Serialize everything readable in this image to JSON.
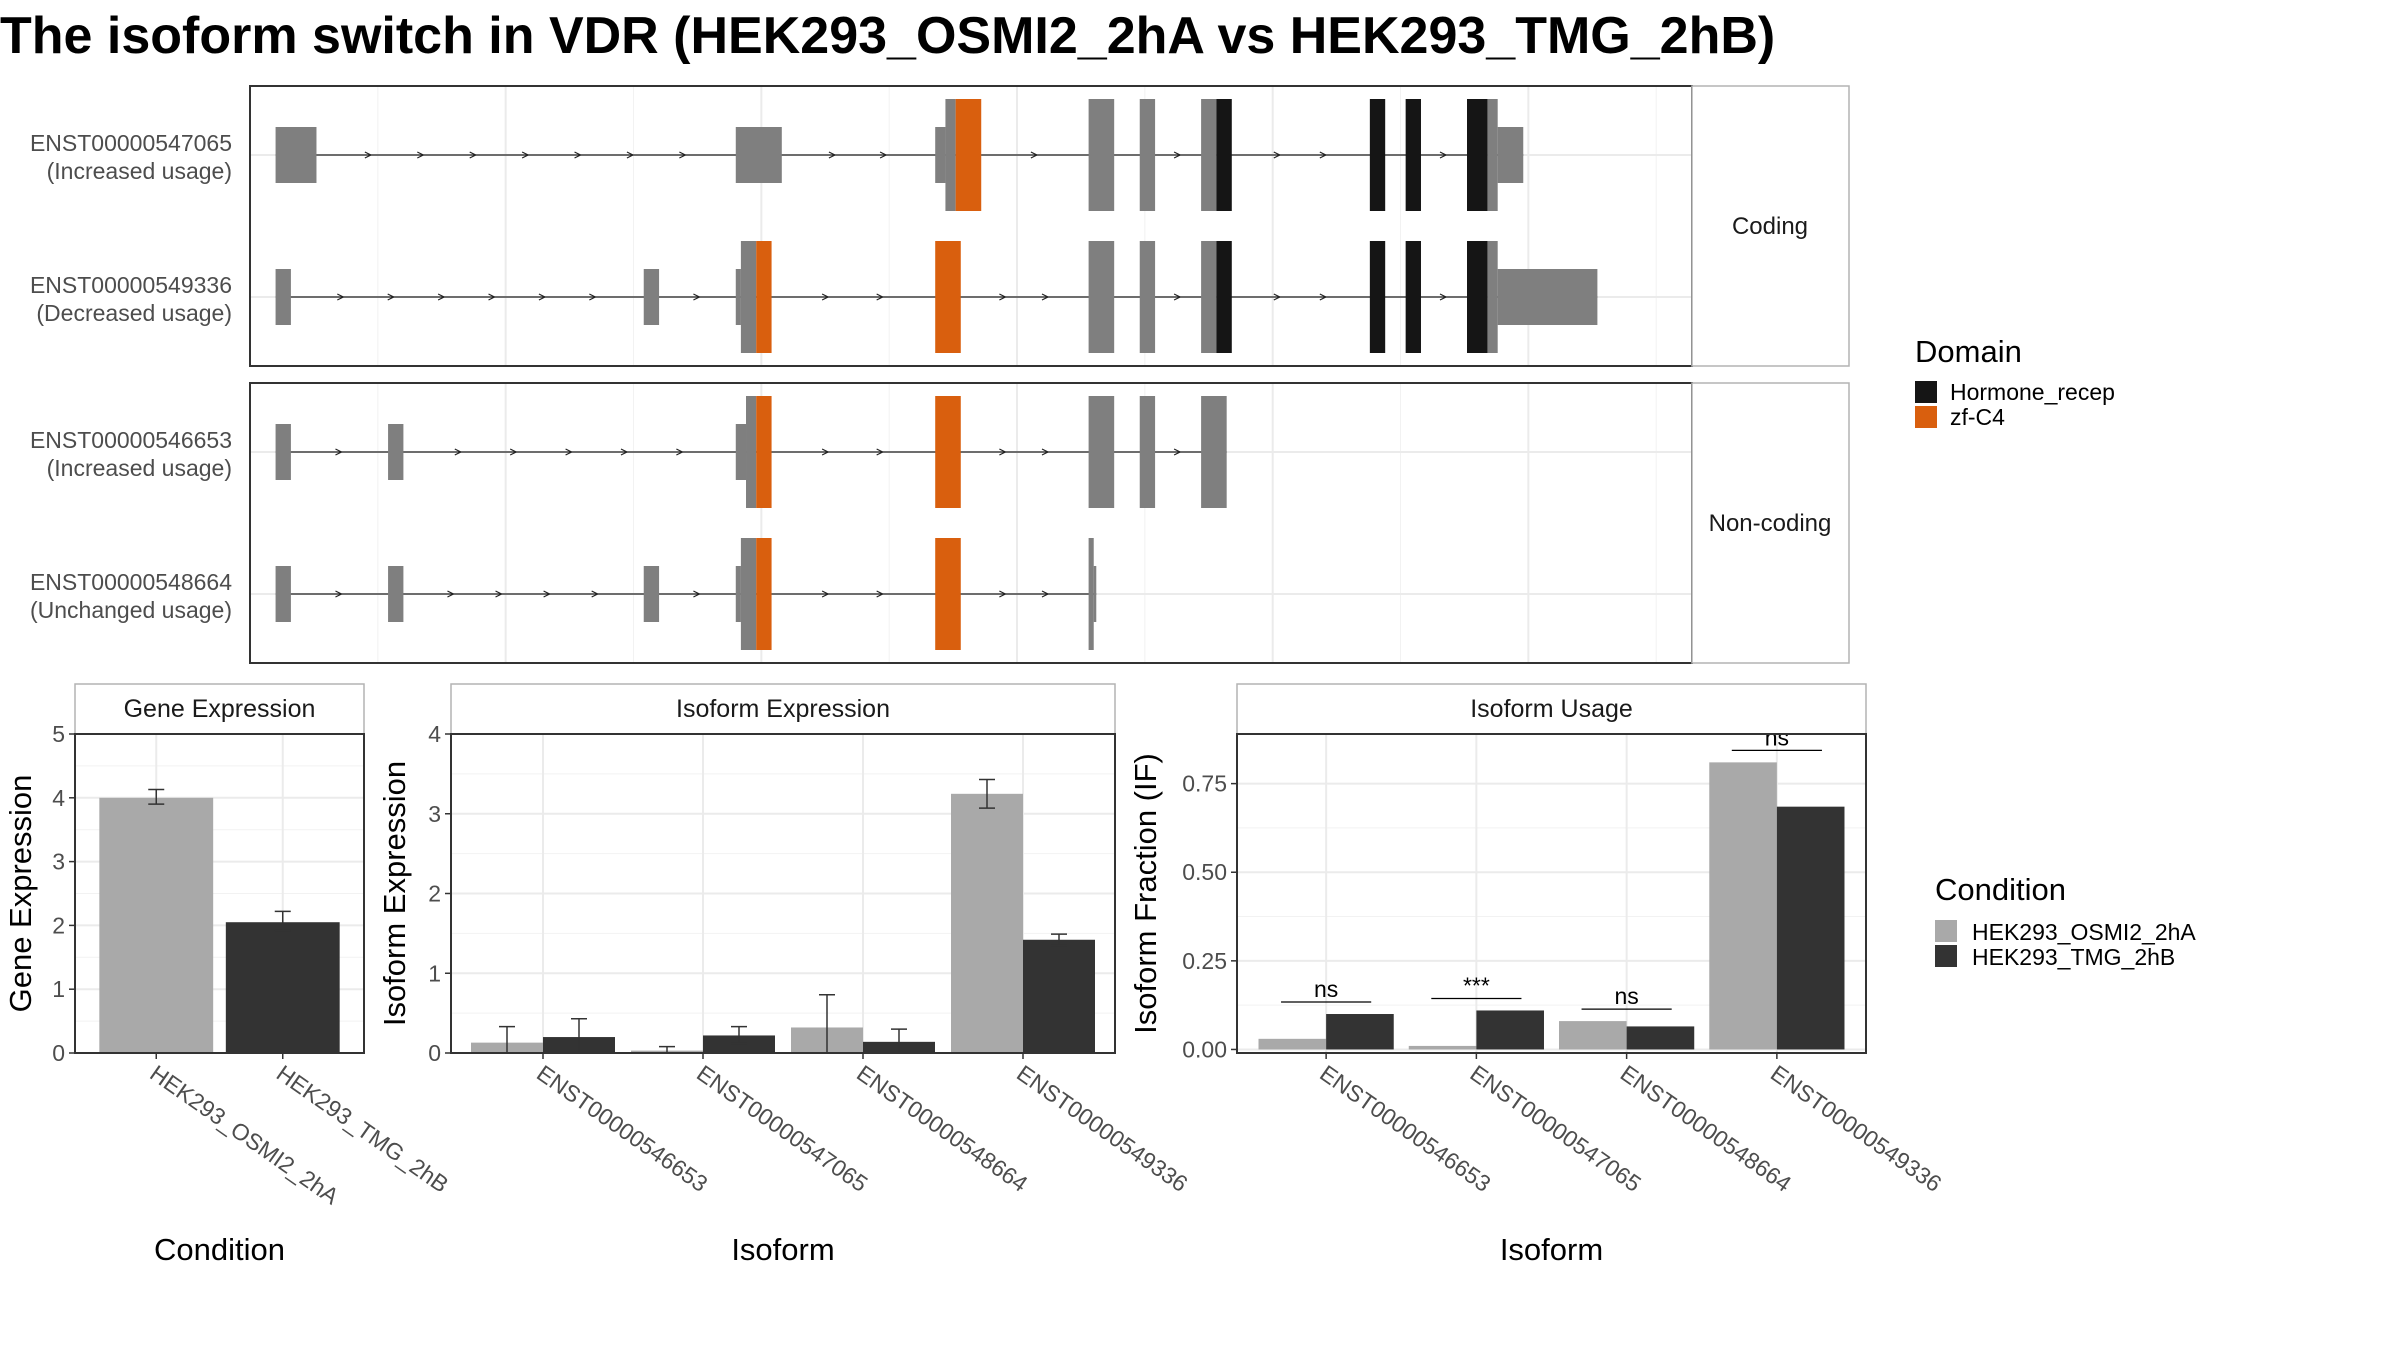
{
  "title": "The isoform switch in VDR (HEK293_OSMI2_2hA vs HEK293_TMG_2hB)",
  "colors": {
    "exon": "#7f7f7f",
    "hormone_recep": "#151515",
    "zf_c4": "#d95f0e",
    "condition_a": "#a9a9a9",
    "condition_b": "#333333",
    "grid": "#ebebeb",
    "strip_fill": "#ffffff",
    "panel_border": "#333333"
  },
  "chart_data": [
    {
      "type": "gene-structure",
      "facets": [
        "Coding",
        "Non-coding"
      ],
      "legend": {
        "title": "Domain",
        "items": [
          "Hormone_recep",
          "zf-C4"
        ]
      },
      "transcripts": [
        {
          "facet": "Coding",
          "id": "ENST00000547065",
          "usage": "(Increased usage)",
          "features": [
            {
              "start": 0.1,
              "end": 0.26,
              "kind": "utr"
            },
            {
              "start": 1.9,
              "end": 2.08,
              "kind": "utr"
            },
            {
              "start": 2.68,
              "end": 2.72,
              "kind": "utr"
            },
            {
              "start": 2.72,
              "end": 2.76,
              "kind": "cds"
            },
            {
              "start": 2.76,
              "end": 2.86,
              "kind": "zf-C4"
            },
            {
              "start": 3.28,
              "end": 3.38,
              "kind": "cds"
            },
            {
              "start": 3.48,
              "end": 3.54,
              "kind": "cds"
            },
            {
              "start": 3.72,
              "end": 3.78,
              "kind": "cds"
            },
            {
              "start": 3.78,
              "end": 3.84,
              "kind": "Hormone_recep"
            },
            {
              "start": 4.38,
              "end": 4.44,
              "kind": "Hormone_recep"
            },
            {
              "start": 4.52,
              "end": 4.58,
              "kind": "Hormone_recep"
            },
            {
              "start": 4.76,
              "end": 4.84,
              "kind": "Hormone_recep"
            },
            {
              "start": 4.84,
              "end": 4.88,
              "kind": "cds"
            },
            {
              "start": 4.88,
              "end": 4.98,
              "kind": "utr"
            }
          ]
        },
        {
          "facet": "Coding",
          "id": "ENST00000549336",
          "usage": "(Decreased usage)",
          "features": [
            {
              "start": 0.1,
              "end": 0.16,
              "kind": "utr"
            },
            {
              "start": 1.54,
              "end": 1.6,
              "kind": "utr"
            },
            {
              "start": 1.9,
              "end": 1.92,
              "kind": "utr"
            },
            {
              "start": 1.92,
              "end": 1.98,
              "kind": "cds"
            },
            {
              "start": 1.98,
              "end": 2.04,
              "kind": "zf-C4"
            },
            {
              "start": 2.68,
              "end": 2.78,
              "kind": "zf-C4"
            },
            {
              "start": 3.28,
              "end": 3.38,
              "kind": "cds"
            },
            {
              "start": 3.48,
              "end": 3.54,
              "kind": "cds"
            },
            {
              "start": 3.72,
              "end": 3.78,
              "kind": "cds"
            },
            {
              "start": 3.78,
              "end": 3.84,
              "kind": "Hormone_recep"
            },
            {
              "start": 4.38,
              "end": 4.44,
              "kind": "Hormone_recep"
            },
            {
              "start": 4.52,
              "end": 4.58,
              "kind": "Hormone_recep"
            },
            {
              "start": 4.76,
              "end": 4.84,
              "kind": "Hormone_recep"
            },
            {
              "start": 4.84,
              "end": 4.88,
              "kind": "cds"
            },
            {
              "start": 4.88,
              "end": 5.27,
              "kind": "utr"
            }
          ]
        },
        {
          "facet": "Non-coding",
          "id": "ENST00000546653",
          "usage": "(Increased usage)",
          "features": [
            {
              "start": 0.1,
              "end": 0.16,
              "kind": "utr"
            },
            {
              "start": 0.54,
              "end": 0.6,
              "kind": "utr"
            },
            {
              "start": 1.9,
              "end": 1.94,
              "kind": "utr"
            },
            {
              "start": 1.94,
              "end": 1.98,
              "kind": "cds"
            },
            {
              "start": 1.98,
              "end": 2.04,
              "kind": "zf-C4"
            },
            {
              "start": 2.68,
              "end": 2.78,
              "kind": "zf-C4"
            },
            {
              "start": 3.28,
              "end": 3.38,
              "kind": "cds"
            },
            {
              "start": 3.48,
              "end": 3.54,
              "kind": "cds"
            },
            {
              "start": 3.72,
              "end": 3.82,
              "kind": "cds"
            }
          ]
        },
        {
          "facet": "Non-coding",
          "id": "ENST00000548664",
          "usage": "(Unchanged usage)",
          "features": [
            {
              "start": 0.1,
              "end": 0.16,
              "kind": "utr"
            },
            {
              "start": 0.54,
              "end": 0.6,
              "kind": "utr"
            },
            {
              "start": 1.54,
              "end": 1.6,
              "kind": "utr"
            },
            {
              "start": 1.9,
              "end": 1.92,
              "kind": "utr"
            },
            {
              "start": 1.92,
              "end": 1.98,
              "kind": "cds"
            },
            {
              "start": 1.98,
              "end": 2.04,
              "kind": "zf-C4"
            },
            {
              "start": 2.68,
              "end": 2.78,
              "kind": "zf-C4"
            },
            {
              "start": 3.28,
              "end": 3.3,
              "kind": "cds"
            },
            {
              "start": 3.3,
              "end": 3.31,
              "kind": "utr"
            }
          ]
        }
      ]
    },
    {
      "type": "bar",
      "strip": "Gene Expression",
      "xlabel": "Condition",
      "ylabel": "Gene Expression",
      "ylim": [
        0,
        5
      ],
      "yticks": [
        "0",
        "1",
        "2",
        "3",
        "4",
        "5"
      ],
      "categories": [
        "HEK293_OSMI2_2hA",
        "HEK293_TMG_2hB"
      ],
      "values": [
        4.0,
        2.05
      ],
      "err_low": [
        3.9,
        1.92
      ],
      "err_high": [
        4.13,
        2.22
      ]
    },
    {
      "type": "bar",
      "strip": "Isoform Expression",
      "xlabel": "Isoform",
      "ylabel": "Isoform Expression",
      "ylim": [
        0,
        4
      ],
      "yticks": [
        "0",
        "1",
        "2",
        "3",
        "4"
      ],
      "categories": [
        "ENST00000546653",
        "ENST00000547065",
        "ENST00000548664",
        "ENST00000549336"
      ],
      "series": [
        {
          "name": "HEK293_OSMI2_2hA",
          "values": [
            0.13,
            0.03,
            0.32,
            3.25
          ],
          "err_low": [
            0.0,
            0.0,
            0.0,
            3.07
          ],
          "err_high": [
            0.33,
            0.08,
            0.73,
            3.43
          ]
        },
        {
          "name": "HEK293_TMG_2hB",
          "values": [
            0.2,
            0.22,
            0.14,
            1.42
          ],
          "err_low": [
            0.0,
            0.12,
            0.0,
            1.35
          ],
          "err_high": [
            0.43,
            0.33,
            0.3,
            1.49
          ]
        }
      ]
    },
    {
      "type": "bar",
      "strip": "Isoform Usage",
      "xlabel": "Isoform",
      "ylabel": "Isoform Fraction (IF)",
      "ylim": [
        -0.01,
        0.89
      ],
      "yticks": [
        "0.00",
        "0.25",
        "0.50",
        "0.75"
      ],
      "categories": [
        "ENST00000546653",
        "ENST00000547065",
        "ENST00000548664",
        "ENST00000549336"
      ],
      "series": [
        {
          "name": "HEK293_OSMI2_2hA",
          "values": [
            0.03,
            0.01,
            0.08,
            0.81
          ]
        },
        {
          "name": "HEK293_TMG_2hB",
          "values": [
            0.1,
            0.11,
            0.065,
            0.685
          ]
        }
      ],
      "annotations": [
        "ns",
        "***",
        "ns",
        "ns"
      ]
    }
  ],
  "condition_legend": {
    "title": "Condition",
    "items": [
      "HEK293_OSMI2_2hA",
      "HEK293_TMG_2hB"
    ]
  }
}
